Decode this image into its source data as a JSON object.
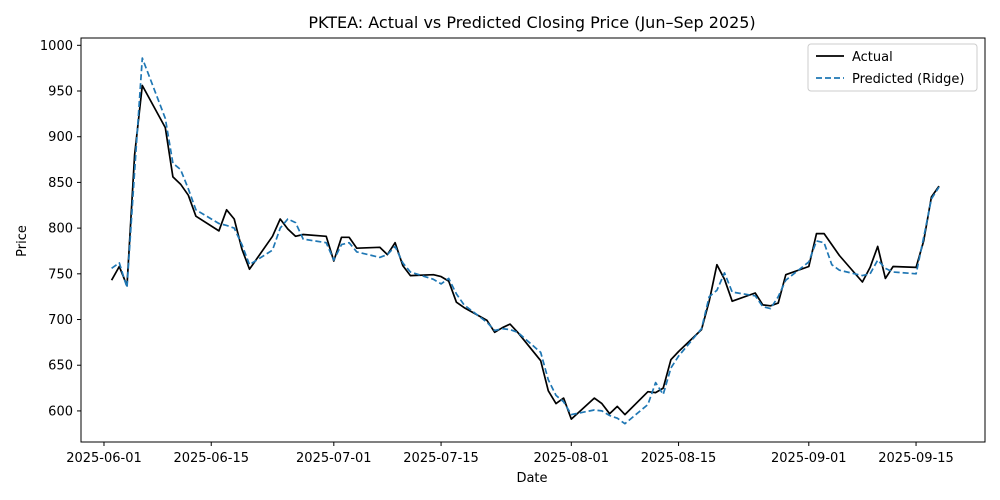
{
  "chart_data": {
    "type": "line",
    "title": "PKTEA: Actual vs Predicted Closing Price (Jun–Sep 2025)",
    "xlabel": "Date",
    "ylabel": "Price",
    "x_range": [
      "2025-05-29",
      "2025-09-24"
    ],
    "ylim": [
      566,
      1008
    ],
    "x_ticks": [
      {
        "date": "2025-06-01",
        "label": "2025-06-01"
      },
      {
        "date": "2025-06-15",
        "label": "2025-06-15"
      },
      {
        "date": "2025-07-01",
        "label": "2025-07-01"
      },
      {
        "date": "2025-07-15",
        "label": "2025-07-15"
      },
      {
        "date": "2025-08-01",
        "label": "2025-08-01"
      },
      {
        "date": "2025-08-15",
        "label": "2025-08-15"
      },
      {
        "date": "2025-09-01",
        "label": "2025-09-01"
      },
      {
        "date": "2025-09-15",
        "label": "2025-09-15"
      }
    ],
    "y_ticks": [
      600,
      650,
      700,
      750,
      800,
      850,
      900,
      950,
      1000
    ],
    "grid": false,
    "legend_position": "top-right",
    "series": [
      {
        "name": "Actual",
        "color": "#000000",
        "style": "solid",
        "points": [
          [
            "2025-06-02",
            743
          ],
          [
            "2025-06-03",
            758
          ],
          [
            "2025-06-04",
            737
          ],
          [
            "2025-06-05",
            880
          ],
          [
            "2025-06-06",
            956
          ],
          [
            "2025-06-09",
            910
          ],
          [
            "2025-06-10",
            856
          ],
          [
            "2025-06-11",
            848
          ],
          [
            "2025-06-12",
            836
          ],
          [
            "2025-06-13",
            813
          ],
          [
            "2025-06-16",
            797
          ],
          [
            "2025-06-17",
            820
          ],
          [
            "2025-06-18",
            810
          ],
          [
            "2025-06-19",
            777
          ],
          [
            "2025-06-20",
            755
          ],
          [
            "2025-06-23",
            791
          ],
          [
            "2025-06-24",
            810
          ],
          [
            "2025-06-25",
            799
          ],
          [
            "2025-06-26",
            791
          ],
          [
            "2025-06-27",
            793
          ],
          [
            "2025-06-30",
            791
          ],
          [
            "2025-07-01",
            764
          ],
          [
            "2025-07-02",
            790
          ],
          [
            "2025-07-03",
            790
          ],
          [
            "2025-07-04",
            778
          ],
          [
            "2025-07-07",
            779
          ],
          [
            "2025-07-08",
            771
          ],
          [
            "2025-07-09",
            784
          ],
          [
            "2025-07-10",
            759
          ],
          [
            "2025-07-11",
            748
          ],
          [
            "2025-07-14",
            749
          ],
          [
            "2025-07-15",
            747
          ],
          [
            "2025-07-16",
            742
          ],
          [
            "2025-07-17",
            719
          ],
          [
            "2025-07-18",
            713
          ],
          [
            "2025-07-21",
            699
          ],
          [
            "2025-07-22",
            686
          ],
          [
            "2025-07-23",
            691
          ],
          [
            "2025-07-24",
            695
          ],
          [
            "2025-07-25",
            686
          ],
          [
            "2025-07-28",
            655
          ],
          [
            "2025-07-29",
            622
          ],
          [
            "2025-07-30",
            608
          ],
          [
            "2025-07-31",
            614
          ],
          [
            "2025-08-01",
            591
          ],
          [
            "2025-08-04",
            614
          ],
          [
            "2025-08-05",
            608
          ],
          [
            "2025-08-06",
            597
          ],
          [
            "2025-08-07",
            605
          ],
          [
            "2025-08-08",
            596
          ],
          [
            "2025-08-11",
            621
          ],
          [
            "2025-08-12",
            620
          ],
          [
            "2025-08-13",
            625
          ],
          [
            "2025-08-14",
            656
          ],
          [
            "2025-08-15",
            665
          ],
          [
            "2025-08-18",
            689
          ],
          [
            "2025-08-19",
            720
          ],
          [
            "2025-08-20",
            760
          ],
          [
            "2025-08-21",
            744
          ],
          [
            "2025-08-22",
            720
          ],
          [
            "2025-08-25",
            729
          ],
          [
            "2025-08-26",
            716
          ],
          [
            "2025-08-27",
            715
          ],
          [
            "2025-08-28",
            718
          ],
          [
            "2025-08-29",
            749
          ],
          [
            "2025-09-01",
            758
          ],
          [
            "2025-09-02",
            794
          ],
          [
            "2025-09-03",
            794
          ],
          [
            "2025-09-04",
            782
          ],
          [
            "2025-09-05",
            770
          ],
          [
            "2025-09-08",
            741
          ],
          [
            "2025-09-09",
            757
          ],
          [
            "2025-09-10",
            780
          ],
          [
            "2025-09-11",
            745
          ],
          [
            "2025-09-12",
            758
          ],
          [
            "2025-09-15",
            757
          ],
          [
            "2025-09-16",
            786
          ],
          [
            "2025-09-17",
            834
          ],
          [
            "2025-09-18",
            846
          ]
        ]
      },
      {
        "name": "Predicted (Ridge)",
        "color": "#1f77b4",
        "style": "dashed",
        "points": [
          [
            "2025-06-02",
            756
          ],
          [
            "2025-06-03",
            762
          ],
          [
            "2025-06-04",
            735
          ],
          [
            "2025-06-05",
            862
          ],
          [
            "2025-06-06",
            986
          ],
          [
            "2025-06-09",
            920
          ],
          [
            "2025-06-10",
            871
          ],
          [
            "2025-06-11",
            864
          ],
          [
            "2025-06-12",
            843
          ],
          [
            "2025-06-13",
            820
          ],
          [
            "2025-06-16",
            805
          ],
          [
            "2025-06-17",
            803
          ],
          [
            "2025-06-18",
            800
          ],
          [
            "2025-06-19",
            782
          ],
          [
            "2025-06-20",
            760
          ],
          [
            "2025-06-23",
            776
          ],
          [
            "2025-06-24",
            800
          ],
          [
            "2025-06-25",
            810
          ],
          [
            "2025-06-26",
            806
          ],
          [
            "2025-06-27",
            788
          ],
          [
            "2025-06-30",
            784
          ],
          [
            "2025-07-01",
            765
          ],
          [
            "2025-07-02",
            782
          ],
          [
            "2025-07-03",
            784
          ],
          [
            "2025-07-04",
            774
          ],
          [
            "2025-07-07",
            768
          ],
          [
            "2025-07-08",
            771
          ],
          [
            "2025-07-09",
            780
          ],
          [
            "2025-07-10",
            762
          ],
          [
            "2025-07-11",
            752
          ],
          [
            "2025-07-14",
            744
          ],
          [
            "2025-07-15",
            739
          ],
          [
            "2025-07-16",
            745
          ],
          [
            "2025-07-17",
            728
          ],
          [
            "2025-07-18",
            716
          ],
          [
            "2025-07-21",
            697
          ],
          [
            "2025-07-22",
            688
          ],
          [
            "2025-07-23",
            690
          ],
          [
            "2025-07-24",
            689
          ],
          [
            "2025-07-25",
            686
          ],
          [
            "2025-07-28",
            664
          ],
          [
            "2025-07-29",
            634
          ],
          [
            "2025-07-30",
            617
          ],
          [
            "2025-07-31",
            610
          ],
          [
            "2025-08-01",
            596
          ],
          [
            "2025-08-04",
            601
          ],
          [
            "2025-08-05",
            600
          ],
          [
            "2025-08-06",
            595
          ],
          [
            "2025-08-07",
            592
          ],
          [
            "2025-08-08",
            586
          ],
          [
            "2025-08-11",
            607
          ],
          [
            "2025-08-12",
            631
          ],
          [
            "2025-08-13",
            618
          ],
          [
            "2025-08-14",
            647
          ],
          [
            "2025-08-15",
            660
          ],
          [
            "2025-08-18",
            690
          ],
          [
            "2025-08-19",
            725
          ],
          [
            "2025-08-20",
            732
          ],
          [
            "2025-08-21",
            751
          ],
          [
            "2025-08-22",
            730
          ],
          [
            "2025-08-25",
            726
          ],
          [
            "2025-08-26",
            714
          ],
          [
            "2025-08-27",
            712
          ],
          [
            "2025-08-28",
            725
          ],
          [
            "2025-08-29",
            743
          ],
          [
            "2025-09-01",
            763
          ],
          [
            "2025-09-02",
            786
          ],
          [
            "2025-09-03",
            784
          ],
          [
            "2025-09-04",
            760
          ],
          [
            "2025-09-05",
            754
          ],
          [
            "2025-09-08",
            748
          ],
          [
            "2025-09-09",
            750
          ],
          [
            "2025-09-10",
            765
          ],
          [
            "2025-09-11",
            756
          ],
          [
            "2025-09-12",
            752
          ],
          [
            "2025-09-15",
            750
          ],
          [
            "2025-09-16",
            790
          ],
          [
            "2025-09-17",
            832
          ],
          [
            "2025-09-18",
            845
          ]
        ]
      }
    ]
  }
}
